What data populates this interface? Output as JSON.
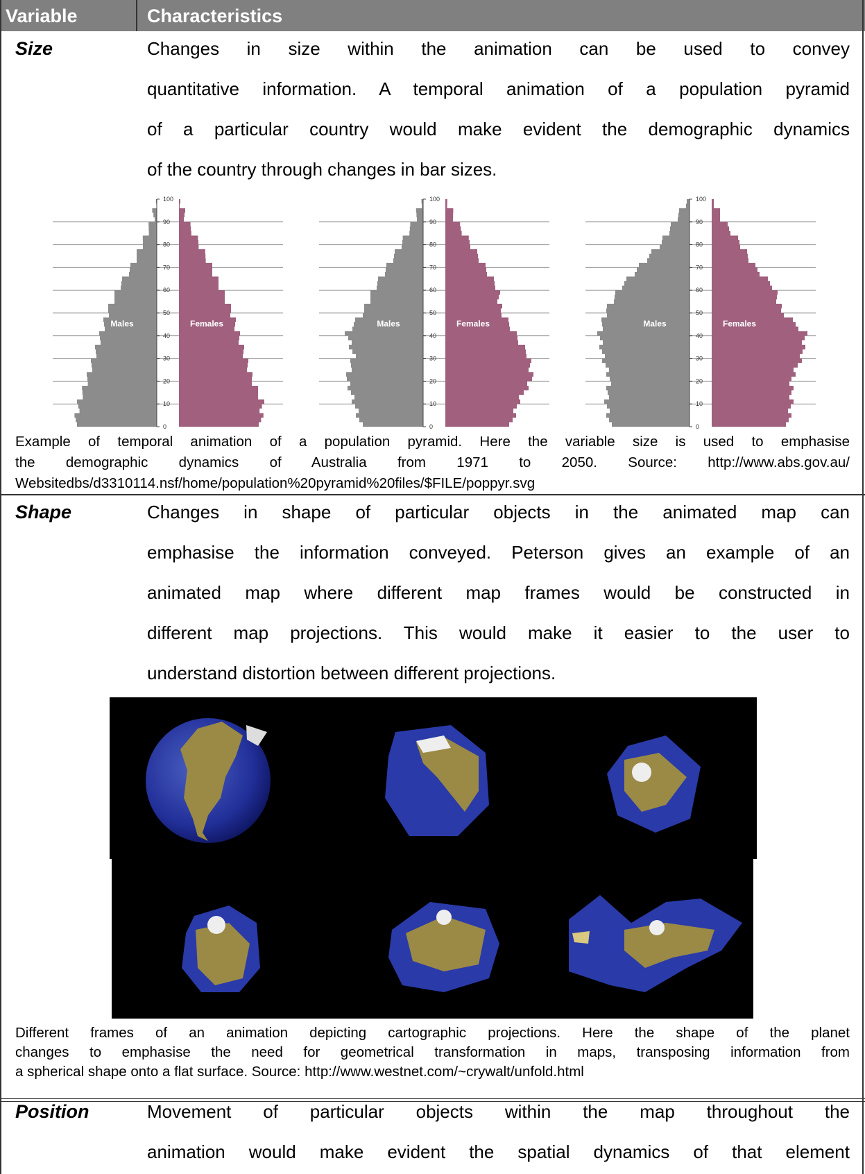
{
  "header": {
    "col1": "Variable",
    "col2": "Characteristics"
  },
  "rows": [
    {
      "variable": "Size",
      "lines": [
        "Changes in size within the animation can be used to convey",
        "quantitative information. A temporal animation of a population pyramid",
        "of a particular country would make evident the demographic dynamics",
        "of the country through changes in bar sizes."
      ],
      "figure": {
        "male_label": "Males",
        "female_label": "Females",
        "age_ticks": [
          0,
          10,
          20,
          30,
          40,
          50,
          60,
          70,
          80,
          90,
          100
        ]
      },
      "caption_lines": [
        "Example of temporal animation of a population pyramid. Here the variable size is used to emphasise",
        "the demographic dynamics of Australia from 1971 to 2050. Source: http://www.abs.gov.au/",
        "Websitedbs/d3310114.nsf/home/population%20pyramid%20files/$FILE/poppyr.svg"
      ]
    },
    {
      "variable": "Shape",
      "lines": [
        "Changes in shape of particular objects in the animated map can",
        "emphasise the information conveyed. Peterson gives an example of an",
        "animated map where different map frames would be constructed in",
        "different map projections. This would make it easier to the user to",
        "understand distortion between different projections."
      ],
      "caption_lines": [
        "Different frames of an animation depicting cartographic projections. Here the shape of the planet",
        "changes to emphasise the need for geometrical transformation in maps, transposing information from",
        "a spherical shape onto a flat surface. Source: http://www.westnet.com/~crywalt/unfold.html"
      ]
    },
    {
      "variable": "Position",
      "lines": [
        "Movement of particular objects within the map throughout the",
        "animation would make evident the spatial dynamics of that element"
      ]
    }
  ]
}
